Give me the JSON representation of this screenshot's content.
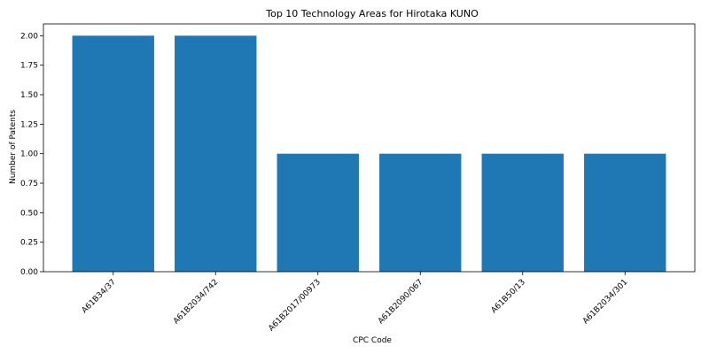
{
  "chart_data": {
    "type": "bar",
    "title": "Top 10 Technology Areas for Hirotaka KUNO",
    "xlabel": "CPC Code",
    "ylabel": "Number of Patents",
    "categories": [
      "A61B34/37",
      "A61B2034/742",
      "A61B2017/00973",
      "A61B2090/067",
      "A61B50/13",
      "A61B2034/301"
    ],
    "values": [
      2,
      2,
      1,
      1,
      1,
      1
    ],
    "ylim": [
      0,
      2.1
    ],
    "yticks": [
      "0.00",
      "0.25",
      "0.50",
      "0.75",
      "1.00",
      "1.25",
      "1.50",
      "1.75",
      "2.00"
    ],
    "bar_color": "#1f77b4",
    "grid": false
  }
}
